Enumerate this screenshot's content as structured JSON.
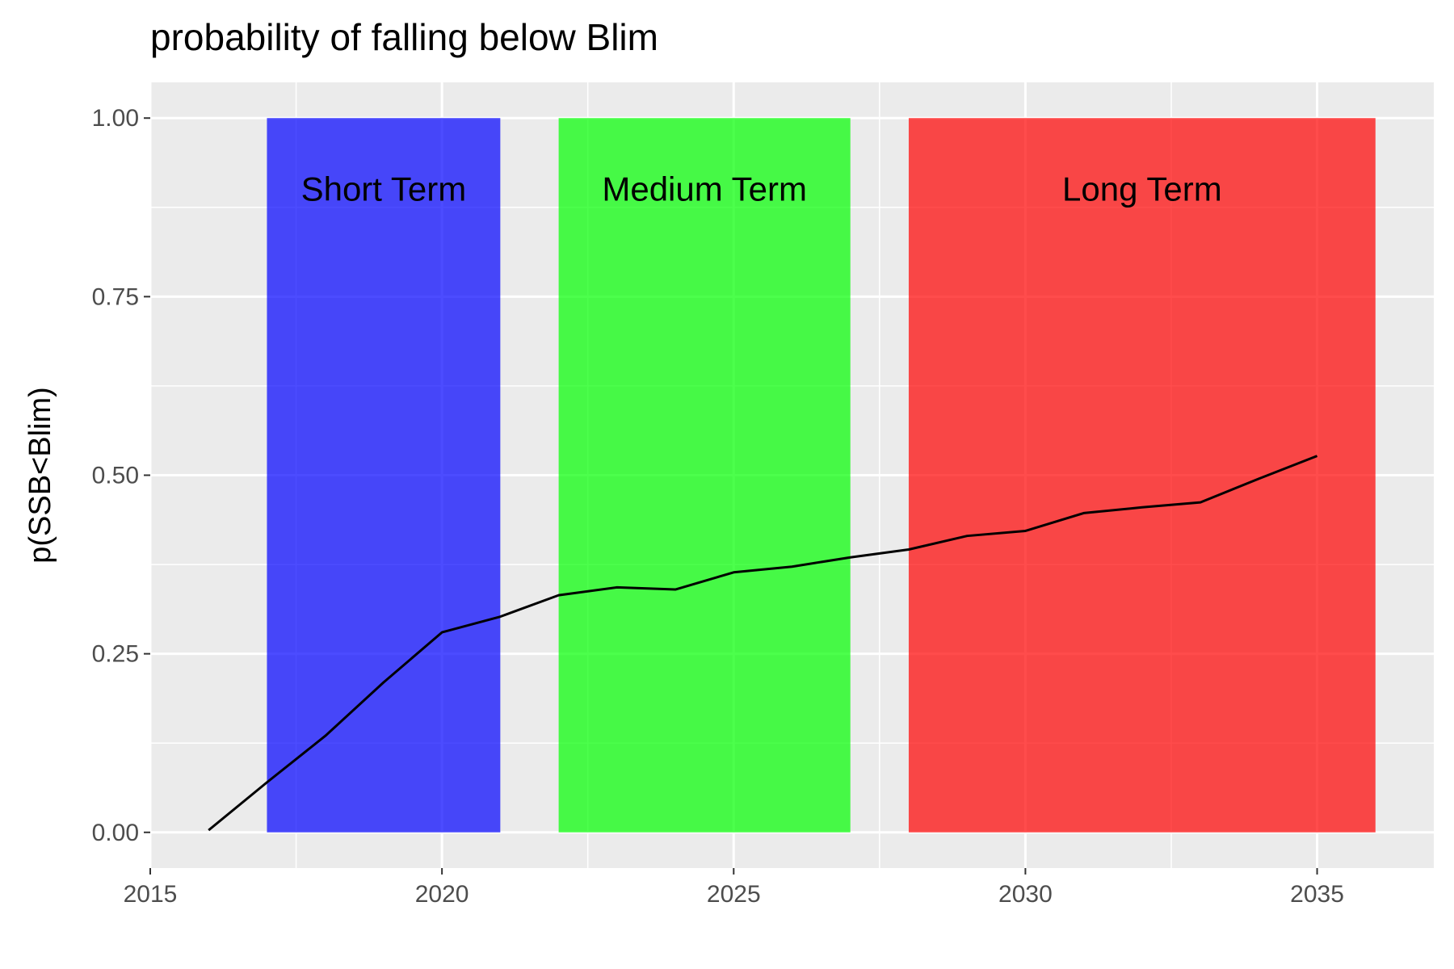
{
  "chart_data": {
    "type": "line",
    "title": "probability of falling below Blim",
    "xlabel": "",
    "ylabel": "p(SSB<Blim)",
    "xlim": [
      2015,
      2037
    ],
    "ylim": [
      -0.05,
      1.05
    ],
    "x_ticks": [
      2015,
      2020,
      2025,
      2030,
      2035
    ],
    "x_tick_labels": [
      "2015",
      "2020",
      "2025",
      "2030",
      "2035"
    ],
    "y_ticks": [
      0,
      0.25,
      0.5,
      0.75,
      1.0
    ],
    "y_tick_labels": [
      "0.00",
      "0.25",
      "0.50",
      "0.75",
      "1.00"
    ],
    "grid": true,
    "legend": "none",
    "series": [
      {
        "color": "#000000",
        "x": [
          2016,
          2017,
          2018,
          2019,
          2020,
          2021,
          2022,
          2023,
          2024,
          2025,
          2026,
          2027,
          2028,
          2029,
          2030,
          2031,
          2032,
          2033,
          2034,
          2035
        ],
        "values": [
          0.003,
          0.07,
          0.135,
          0.21,
          0.28,
          0.302,
          0.332,
          0.343,
          0.34,
          0.364,
          0.372,
          0.385,
          0.396,
          0.415,
          0.422,
          0.447,
          0.455,
          0.462,
          0.495,
          0.527
        ]
      }
    ],
    "bands": [
      {
        "label": "Short Term",
        "x_start": 2017,
        "x_end": 2021,
        "y_start": 0,
        "y_end": 1,
        "color": "#0000ff"
      },
      {
        "label": "Medium Term",
        "x_start": 2022,
        "x_end": 2027,
        "y_start": 0,
        "y_end": 1,
        "color": "#00ff00"
      },
      {
        "label": "Long Term",
        "x_start": 2028,
        "x_end": 2036,
        "y_start": 0,
        "y_end": 1,
        "color": "#ff0000"
      }
    ],
    "band_label_y": 0.9,
    "band_opacity": 0.7,
    "panel_background": "#ebebeb",
    "grid_color": "#ffffff"
  }
}
